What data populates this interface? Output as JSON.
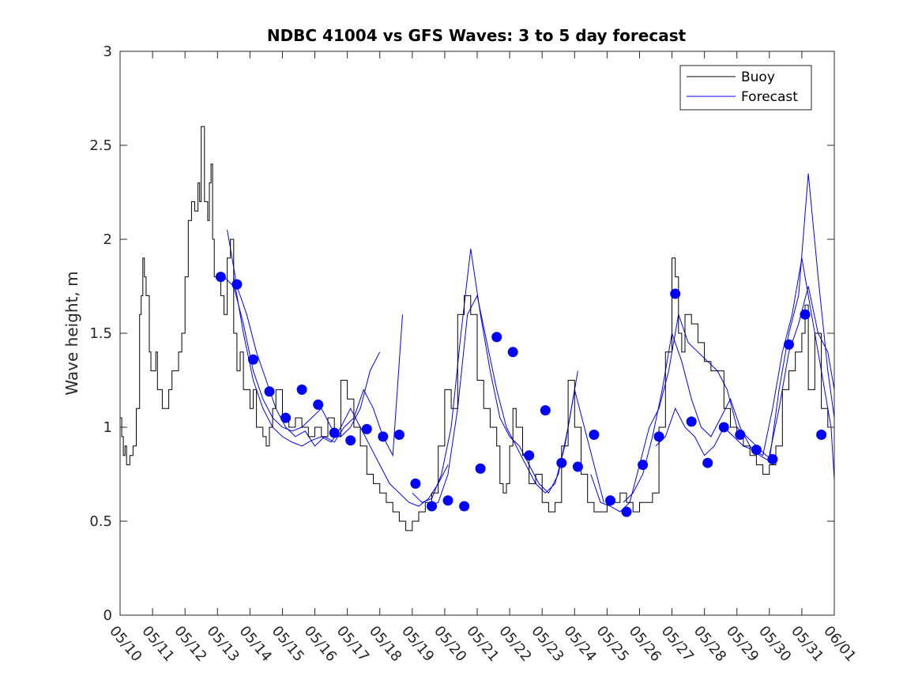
{
  "chart_data": {
    "type": "line",
    "title": "NDBC 41004 vs GFS Waves: 3 to 5 day forecast",
    "xlabel": "",
    "ylabel": "Wave height, m",
    "ylim": [
      0,
      3
    ],
    "yticks": [
      "0",
      "0.5",
      "1",
      "1.5",
      "2",
      "2.5",
      "3"
    ],
    "xlim_days": [
      0,
      22
    ],
    "xticks": [
      "05/10",
      "05/11",
      "05/12",
      "05/13",
      "05/14",
      "05/15",
      "05/16",
      "05/17",
      "05/18",
      "05/19",
      "05/20",
      "05/21",
      "05/22",
      "05/23",
      "05/24",
      "05/25",
      "05/26",
      "05/27",
      "05/28",
      "05/29",
      "05/30",
      "05/31",
      "06/01"
    ],
    "legend": {
      "position": "top-right",
      "entries": [
        "Buoy",
        "Forecast"
      ]
    },
    "colors": {
      "buoy": "#000000",
      "forecast": "#0000ff",
      "marker": "#0000ff"
    },
    "buoy_series": {
      "name": "Buoy",
      "x": [
        0,
        0.05,
        0.1,
        0.15,
        0.2,
        0.3,
        0.4,
        0.5,
        0.6,
        0.65,
        0.7,
        0.75,
        0.8,
        0.9,
        0.95,
        1.0,
        1.1,
        1.15,
        1.2,
        1.3,
        1.4,
        1.5,
        1.6,
        1.7,
        1.8,
        1.9,
        2.0,
        2.1,
        2.2,
        2.3,
        2.4,
        2.45,
        2.5,
        2.6,
        2.7,
        2.75,
        2.8,
        2.85,
        2.9,
        3.0,
        3.1,
        3.2,
        3.3,
        3.4,
        3.5,
        3.6,
        3.7,
        3.8,
        3.9,
        4.0,
        4.1,
        4.2,
        4.3,
        4.4,
        4.5,
        4.6,
        4.7,
        4.8,
        5.0,
        5.2,
        5.4,
        5.6,
        5.8,
        6.0,
        6.2,
        6.4,
        6.6,
        6.8,
        7.0,
        7.2,
        7.4,
        7.6,
        7.8,
        8.0,
        8.2,
        8.4,
        8.6,
        8.8,
        9.0,
        9.2,
        9.4,
        9.6,
        9.8,
        10.0,
        10.2,
        10.4,
        10.6,
        10.8,
        11.0,
        11.2,
        11.4,
        11.6,
        11.7,
        11.8,
        11.9,
        12.0,
        12.1,
        12.2,
        12.4,
        12.6,
        12.8,
        13.0,
        13.2,
        13.4,
        13.6,
        13.8,
        14.0,
        14.2,
        14.4,
        14.6,
        14.8,
        15.0,
        15.2,
        15.4,
        15.6,
        15.8,
        16.0,
        16.2,
        16.4,
        16.6,
        16.8,
        17.0,
        17.1,
        17.2,
        17.3,
        17.4,
        17.6,
        17.8,
        18.0,
        18.2,
        18.4,
        18.6,
        18.8,
        19.0,
        19.2,
        19.4,
        19.6,
        19.8,
        20.0,
        20.2,
        20.4,
        20.6,
        20.8,
        21.0,
        21.1,
        21.2,
        21.4,
        21.6,
        21.8,
        22.0
      ],
      "values": [
        1.05,
        0.95,
        0.85,
        0.9,
        0.8,
        0.85,
        0.9,
        1.1,
        1.6,
        1.7,
        1.9,
        1.8,
        1.7,
        1.4,
        1.3,
        1.3,
        1.4,
        1.2,
        1.2,
        1.1,
        1.1,
        1.2,
        1.3,
        1.3,
        1.4,
        1.5,
        1.8,
        2.1,
        2.2,
        2.15,
        2.3,
        2.2,
        2.6,
        2.2,
        2.1,
        2.3,
        2.4,
        2.0,
        1.8,
        1.8,
        1.7,
        1.6,
        1.9,
        2.0,
        1.5,
        1.3,
        1.4,
        1.2,
        1.2,
        1.1,
        1.2,
        1.0,
        1.0,
        0.95,
        0.9,
        1.0,
        1.1,
        1.2,
        1.05,
        1.0,
        1.05,
        1.0,
        0.95,
        1.0,
        0.95,
        1.05,
        0.95,
        1.25,
        1.15,
        1.0,
        0.9,
        0.75,
        0.7,
        0.65,
        0.6,
        0.55,
        0.5,
        0.45,
        0.5,
        0.55,
        0.6,
        0.65,
        0.9,
        1.2,
        1.1,
        1.6,
        1.7,
        1.6,
        1.25,
        1.1,
        1.0,
        0.9,
        0.7,
        0.65,
        0.7,
        0.9,
        1.1,
        1.0,
        0.85,
        0.7,
        0.75,
        0.6,
        0.55,
        0.6,
        0.9,
        1.25,
        1.0,
        0.75,
        0.6,
        0.55,
        0.55,
        0.6,
        0.6,
        0.65,
        0.6,
        0.55,
        0.6,
        0.6,
        0.65,
        1.0,
        1.4,
        1.9,
        1.8,
        1.5,
        1.4,
        1.6,
        1.55,
        1.45,
        1.35,
        1.3,
        1.3,
        1.1,
        1.0,
        0.95,
        0.9,
        0.85,
        0.8,
        0.75,
        0.8,
        0.9,
        1.2,
        1.3,
        1.4,
        1.5,
        1.65,
        1.2,
        1.5,
        1.1,
        1.0,
        1.0
      ]
    },
    "forecast_lines": [
      {
        "x": [
          3.2,
          3.5,
          3.8,
          4.1,
          4.4,
          4.7,
          5.0,
          5.3,
          5.6,
          5.9,
          6.2,
          6.5,
          6.8,
          7.1,
          7.4,
          7.7,
          8.0
        ],
        "values": [
          1.8,
          1.75,
          1.55,
          1.3,
          1.15,
          1.05,
          1.0,
          0.98,
          1.0,
          1.05,
          1.1,
          1.0,
          0.95,
          1.0,
          1.1,
          1.3,
          1.4
        ]
      },
      {
        "x": [
          3.3,
          3.6,
          3.9,
          4.2,
          4.5,
          4.8,
          5.1,
          5.4,
          5.7,
          6.0,
          6.3,
          6.6,
          6.9,
          7.2,
          7.5,
          7.8,
          8.1,
          8.4,
          8.7
        ],
        "values": [
          2.05,
          1.75,
          1.6,
          1.4,
          1.25,
          1.1,
          1.0,
          0.95,
          0.98,
          0.9,
          0.95,
          0.92,
          1.0,
          1.05,
          1.2,
          1.1,
          0.95,
          0.85,
          1.6
        ]
      },
      {
        "x": [
          3.5,
          3.8,
          4.1,
          4.4,
          4.7,
          5.0,
          5.3,
          5.6,
          5.9,
          6.2,
          6.5,
          6.8,
          7.1,
          7.4,
          7.7,
          8.0,
          8.3,
          8.6,
          8.9,
          9.2,
          9.5,
          9.8,
          10.1
        ],
        "values": [
          1.8,
          1.5,
          1.25,
          1.1,
          1.0,
          0.95,
          0.92,
          0.9,
          0.93,
          0.95,
          0.92,
          1.0,
          1.1,
          1.0,
          0.9,
          0.8,
          0.7,
          0.65,
          0.6,
          0.58,
          0.62,
          0.7,
          0.8
        ]
      },
      {
        "x": [
          9.0,
          9.3,
          9.6,
          9.9,
          10.2,
          10.5,
          10.8,
          11.1,
          11.4,
          11.7,
          12.0,
          12.3,
          12.6,
          12.9,
          13.2,
          13.5,
          13.8,
          14.1
        ],
        "values": [
          0.65,
          0.6,
          0.62,
          0.75,
          1.0,
          1.5,
          1.95,
          1.6,
          1.3,
          1.05,
          0.95,
          0.9,
          0.8,
          0.7,
          0.65,
          0.75,
          1.0,
          1.3
        ]
      },
      {
        "x": [
          9.5,
          9.8,
          10.1,
          10.4,
          10.7,
          11.0,
          11.3,
          11.6,
          11.9,
          12.2,
          12.5,
          12.8,
          13.1,
          13.4,
          13.7,
          14.0,
          14.3,
          14.6,
          14.9
        ],
        "values": [
          0.58,
          0.6,
          0.75,
          1.1,
          1.6,
          1.7,
          1.45,
          1.2,
          1.0,
          0.9,
          0.8,
          0.7,
          0.65,
          0.7,
          0.9,
          1.2,
          1.0,
          0.8,
          0.6
        ]
      },
      {
        "x": [
          14.5,
          14.8,
          15.1,
          15.4,
          15.7,
          16.0,
          16.3,
          16.6,
          16.9,
          17.2,
          17.5,
          17.8,
          18.1,
          18.4,
          18.7,
          19.0,
          19.3,
          19.6,
          19.9,
          20.2
        ],
        "values": [
          0.75,
          0.6,
          0.58,
          0.55,
          0.6,
          0.8,
          1.0,
          1.1,
          1.3,
          1.6,
          1.45,
          1.4,
          1.35,
          1.3,
          1.2,
          1.0,
          0.95,
          0.9,
          0.85,
          0.82
        ]
      },
      {
        "x": [
          15.5,
          15.8,
          16.1,
          16.4,
          16.7,
          17.0,
          17.3,
          17.6,
          17.9,
          18.2,
          18.5,
          18.8,
          19.1,
          19.4,
          19.7,
          20.0,
          20.3,
          20.6,
          20.9,
          21.2,
          21.5,
          21.8,
          22.0
        ],
        "values": [
          0.6,
          0.65,
          0.75,
          0.95,
          1.2,
          1.5,
          1.35,
          1.15,
          1.0,
          0.95,
          1.05,
          1.15,
          1.0,
          0.9,
          0.85,
          0.82,
          1.2,
          1.5,
          1.7,
          2.35,
          1.8,
          1.3,
          1.05
        ]
      },
      {
        "x": [
          16.5,
          16.8,
          17.1,
          17.4,
          17.7,
          18.0,
          18.3,
          18.6,
          18.9,
          19.2,
          19.5,
          19.8,
          20.1,
          20.4,
          20.7,
          21.0,
          21.3,
          21.6,
          21.9,
          22.0
        ],
        "values": [
          0.9,
          0.95,
          1.1,
          1.0,
          0.95,
          0.85,
          0.9,
          1.0,
          0.95,
          0.9,
          0.88,
          0.85,
          1.1,
          1.4,
          1.6,
          1.9,
          1.6,
          1.3,
          1.0,
          0.72
        ]
      },
      {
        "x": [
          20.0,
          20.3,
          20.6,
          20.9,
          21.2,
          21.5,
          21.8,
          22.0
        ],
        "values": [
          0.85,
          1.1,
          1.4,
          1.55,
          1.75,
          1.5,
          1.4,
          1.2
        ]
      }
    ],
    "forecast_points": {
      "x": [
        3.1,
        3.6,
        4.1,
        4.6,
        5.1,
        5.6,
        6.1,
        6.6,
        7.1,
        7.6,
        8.1,
        8.6,
        9.1,
        9.6,
        10.1,
        10.6,
        11.1,
        11.6,
        12.1,
        12.6,
        13.1,
        13.6,
        14.1,
        14.6,
        15.1,
        15.6,
        16.1,
        16.6,
        17.1,
        17.6,
        18.1,
        18.6,
        19.1,
        19.6,
        20.1,
        20.6,
        21.1,
        21.6
      ],
      "values": [
        1.8,
        1.76,
        1.36,
        1.19,
        1.05,
        1.2,
        1.12,
        0.97,
        0.93,
        0.99,
        0.95,
        0.96,
        0.7,
        0.58,
        0.61,
        0.58,
        0.78,
        1.48,
        1.4,
        0.85,
        1.09,
        0.81,
        0.79,
        0.96,
        0.61,
        0.55,
        0.8,
        0.95,
        1.71,
        1.03,
        0.81,
        1.0,
        0.96,
        0.88,
        0.83,
        1.44,
        1.6,
        0.96
      ]
    }
  }
}
